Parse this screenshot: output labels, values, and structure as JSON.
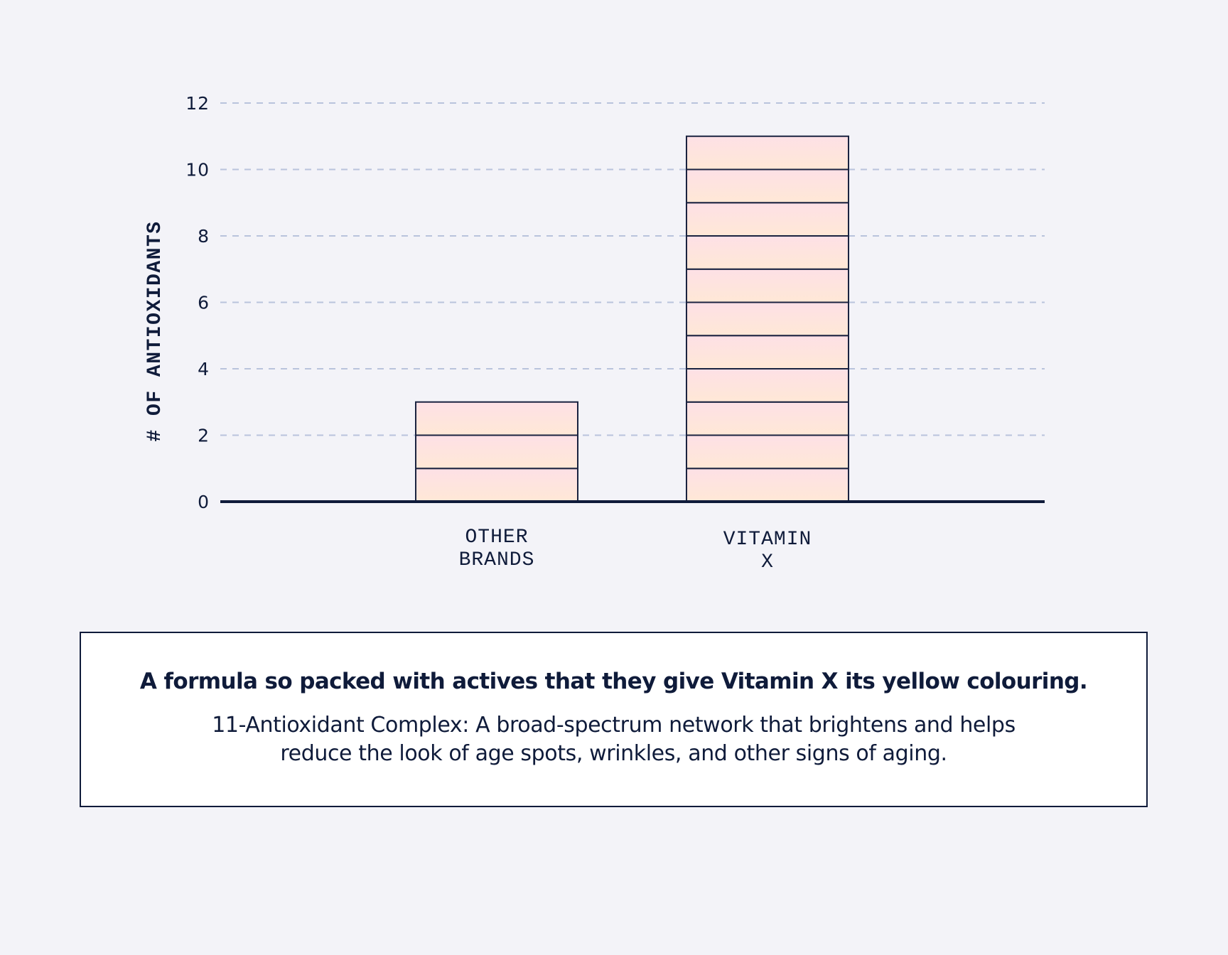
{
  "chart_data": {
    "type": "bar",
    "categories": [
      [
        "OTHER",
        "BRANDS"
      ],
      [
        "VITAMIN",
        "X"
      ]
    ],
    "values": [
      3,
      11
    ],
    "ylabel": "# OF ANTIOXIDANTS",
    "xlabel": "",
    "ylim": [
      0,
      12
    ],
    "yticks": [
      0,
      2,
      4,
      6,
      8,
      10,
      12
    ],
    "grid": true,
    "segmented_bars": true,
    "colors": {
      "bar_top": "#fde0e6",
      "bar_bottom": "#ffe8d6",
      "outline": "#1a2340",
      "grid": "#b9c3dc",
      "axis": "#0f1b3a"
    }
  },
  "info": {
    "headline": "A formula so packed with actives that they give Vitamin X its yellow colouring.",
    "body": "11-Antioxidant Complex: A broad-spectrum network that brightens and helps reduce the look of age spots, wrinkles, and other signs of aging."
  }
}
